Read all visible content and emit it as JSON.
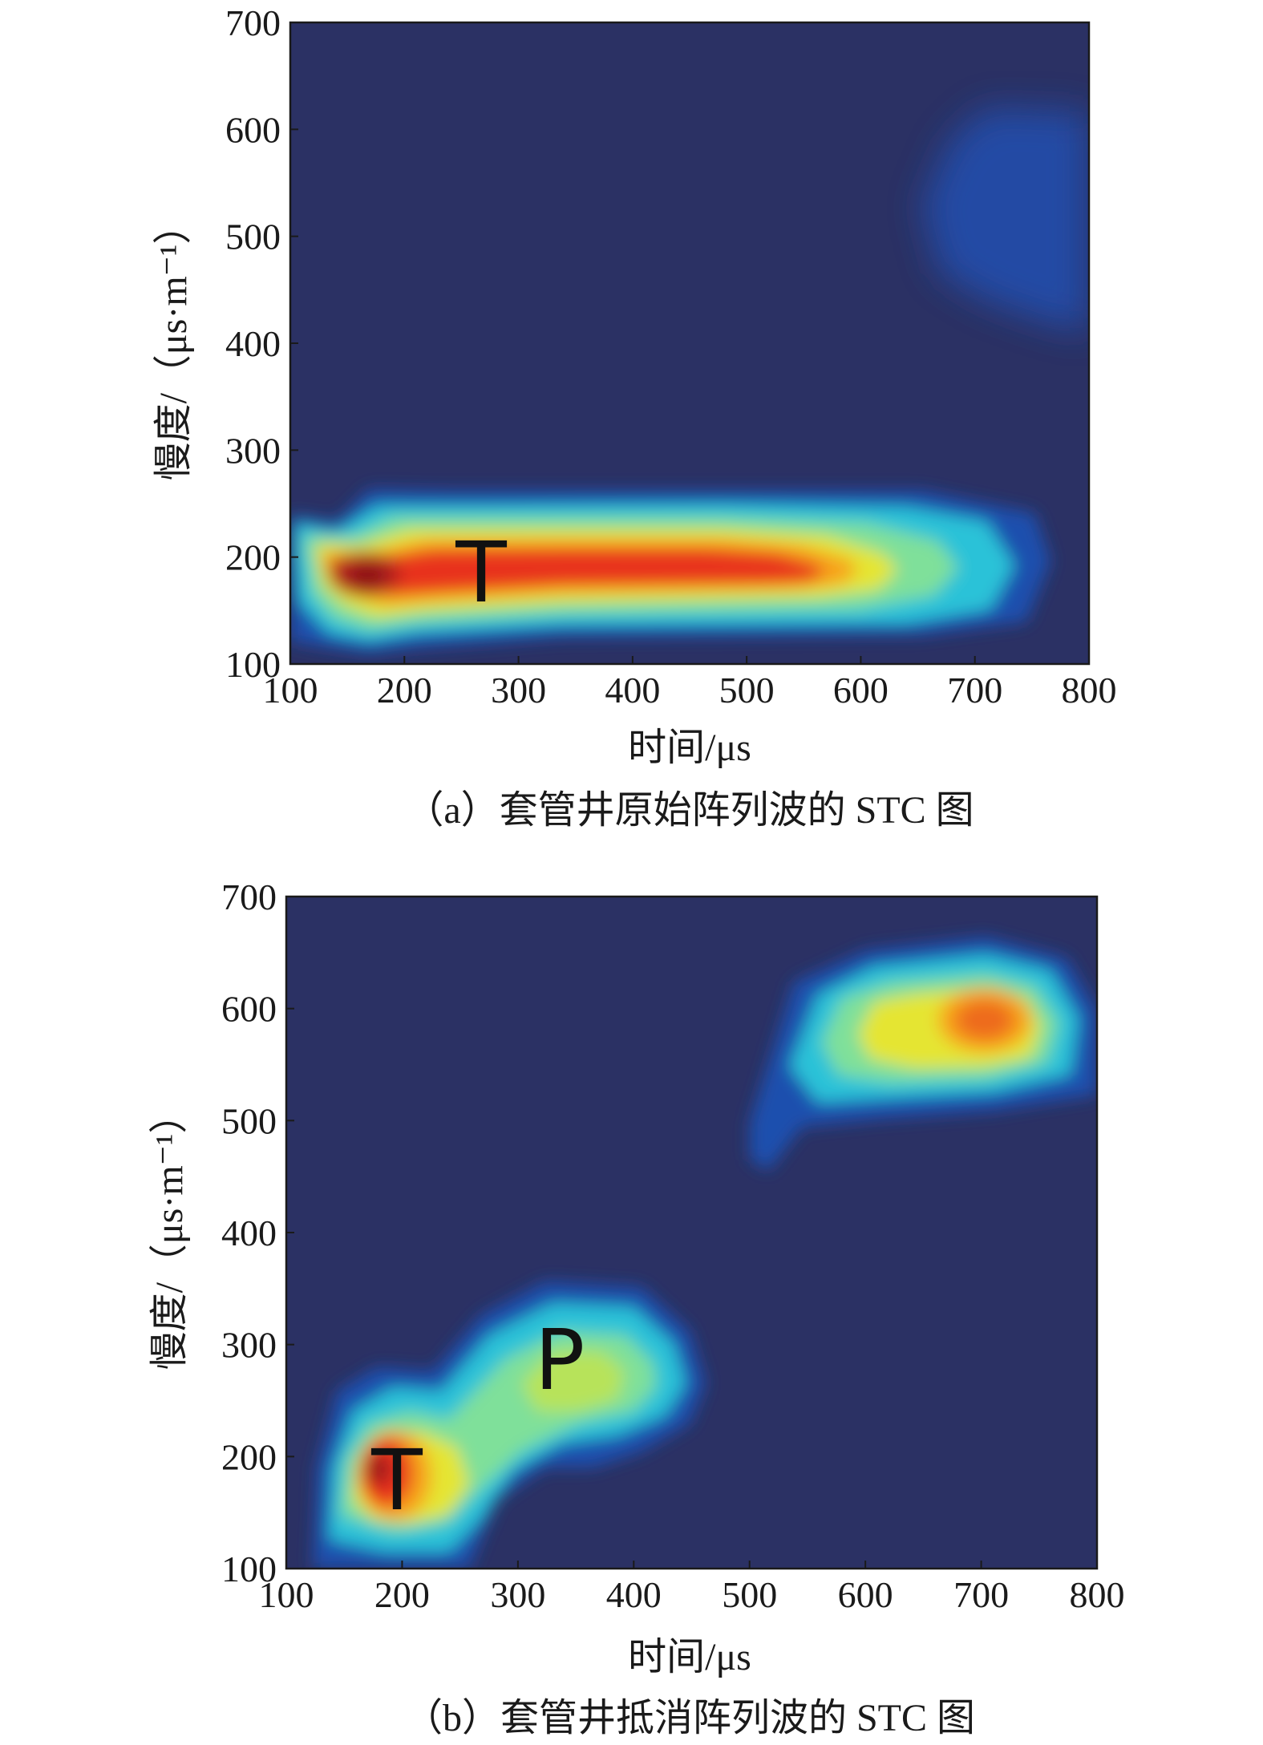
{
  "chart_data": [
    {
      "type": "heatmap",
      "caption": "（a）套管井原始阵列波的 STC 图",
      "xlabel": "时间/μs",
      "ylabel": "慢度/（μs·m⁻¹）",
      "xlim": [
        100,
        800
      ],
      "ylim": [
        100,
        700
      ],
      "xticks": [
        "100",
        "200",
        "300",
        "400",
        "500",
        "600",
        "700",
        "800"
      ],
      "yticks": [
        "100",
        "200",
        "300",
        "400",
        "500",
        "600",
        "700"
      ],
      "colormap": [
        "#2b3164",
        "#1f4fae",
        "#1e7fd8",
        "#2cc2d8",
        "#7fe09a",
        "#e5e532",
        "#f7a21c",
        "#e8331d",
        "#9b1a1a"
      ],
      "background_color": "#2b3164",
      "peak_labels": [
        {
          "text": "T",
          "x": 270,
          "y": 180
        }
      ],
      "energy_regions": [
        {
          "x_range": [
            100,
            790
          ],
          "y_range": [
            130,
            265
          ],
          "center": [
            430,
            180
          ],
          "max_level": 0.97
        },
        {
          "x_range": [
            130,
            250
          ],
          "y_range": [
            150,
            215
          ],
          "center": [
            170,
            178
          ],
          "max_level": 1.0
        },
        {
          "x_range": [
            660,
            800
          ],
          "y_range": [
            420,
            620
          ],
          "center": [
            760,
            520
          ],
          "max_level": 0.2
        }
      ]
    },
    {
      "type": "heatmap",
      "caption": "（b）套管井抵消阵列波的 STC 图",
      "xlabel": "时间/μs",
      "ylabel": "慢度/（μs·m⁻¹）",
      "xlim": [
        100,
        800
      ],
      "ylim": [
        100,
        700
      ],
      "xticks": [
        "100",
        "200",
        "300",
        "400",
        "500",
        "600",
        "700",
        "800"
      ],
      "yticks": [
        "100",
        "200",
        "300",
        "400",
        "500",
        "600",
        "700"
      ],
      "colormap": [
        "#2b3164",
        "#1f4fae",
        "#1e7fd8",
        "#2cc2d8",
        "#7fe09a",
        "#e5e532",
        "#f7a21c",
        "#e8331d",
        "#9b1a1a"
      ],
      "background_color": "#2b3164",
      "peak_labels": [
        {
          "text": "T",
          "x": 195,
          "y": 175
        },
        {
          "text": "P",
          "x": 335,
          "y": 285
        }
      ],
      "energy_regions": [
        {
          "x_range": [
            135,
            265
          ],
          "y_range": [
            100,
            265
          ],
          "center": [
            175,
            180
          ],
          "max_level": 0.97
        },
        {
          "x_range": [
            265,
            460
          ],
          "y_range": [
            220,
            360
          ],
          "center": [
            330,
            285
          ],
          "max_level": 0.55
        },
        {
          "x_range": [
            500,
            800
          ],
          "y_range": [
            460,
            660
          ],
          "center": [
            700,
            590
          ],
          "max_level": 0.82
        }
      ]
    }
  ]
}
